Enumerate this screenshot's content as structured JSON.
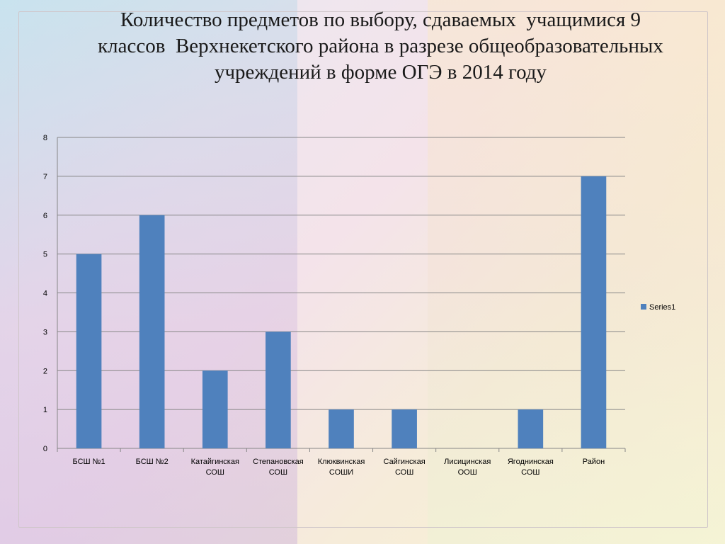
{
  "slide": {
    "title_lines": [
      "Количество предметов по выбору, сдаваемых  учащимися 9",
      "классов  Верхнекетского района в разрезе общеобразовательных",
      "учреждений в форме ОГЭ в 2014 году"
    ]
  },
  "chart_data": {
    "type": "bar",
    "title": "Количество предметов по выбору, сдаваемых  учащимися 9 классов  Верхнекетского района в разрезе общеобразовательных учреждений в форме ОГЭ в 2014 году",
    "categories": [
      [
        "БСШ №1"
      ],
      [
        "БСШ №2"
      ],
      [
        "Катайгинская",
        "СОШ"
      ],
      [
        "Степановская",
        "СОШ"
      ],
      [
        "Клюквинская",
        "СОШИ"
      ],
      [
        "Сайгинская",
        "СОШ"
      ],
      [
        "Лисицинская",
        "ООШ"
      ],
      [
        "Ягоднинская",
        "СОШ"
      ],
      [
        "Район"
      ]
    ],
    "series": [
      {
        "name": "Series1",
        "values": [
          5,
          6,
          2,
          3,
          1,
          1,
          0,
          1,
          7
        ],
        "color": "#4F81BD"
      }
    ],
    "ylim": [
      0,
      8
    ],
    "yticks": [
      0,
      1,
      2,
      3,
      4,
      5,
      6,
      7,
      8
    ],
    "grid": true,
    "legend_position": "right",
    "xlabel": "",
    "ylabel": ""
  }
}
